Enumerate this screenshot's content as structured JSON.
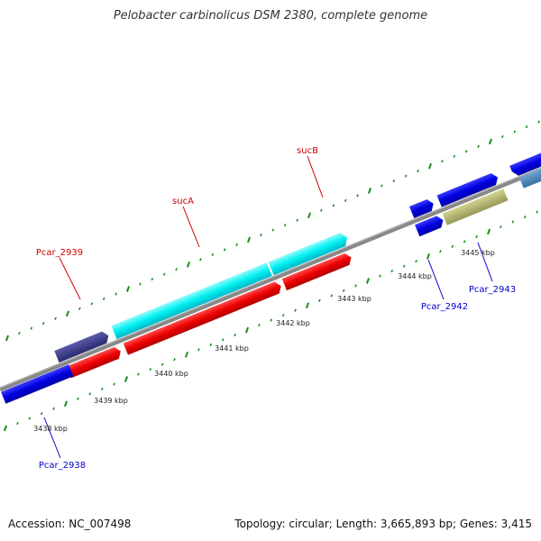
{
  "title": "Pelobacter carbinolicus DSM 2380, complete genome",
  "footer": {
    "accession": "Accession: NC_007498",
    "stats": "Topology: circular; Length: 3,665,893 bp; Genes: 3,415"
  },
  "scale_labels": [
    "3438 kbp",
    "3439 kbp",
    "3440 kbp",
    "3441 kbp",
    "3442 kbp",
    "3443 kbp",
    "3444 kbp",
    "3445 kbp"
  ],
  "gene_labels": [
    {
      "text": "Pcar_2939",
      "color": "#cc0000"
    },
    {
      "text": "sucA",
      "color": "#cc0000"
    },
    {
      "text": "sucB",
      "color": "#cc0000"
    },
    {
      "text": "Pcar_2938",
      "color": "#0000cc"
    },
    {
      "text": "Pcar_2942",
      "color": "#0000cc"
    },
    {
      "text": "Pcar_2943",
      "color": "#0000cc"
    }
  ],
  "colors": {
    "backbone": "#888888",
    "tick": "#1a8a1a",
    "red_feature": "#ee0000",
    "cyan_feature": "#00f0f0",
    "blue_feature": "#0000e0",
    "navy_feature": "#3a3a8a",
    "olive_feature": "#b5b56a",
    "steel_feature": "#4682b4"
  }
}
